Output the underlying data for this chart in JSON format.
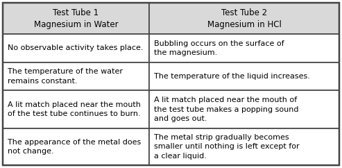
{
  "header": [
    "Test Tube 1\nMagnesium in Water",
    "Test Tube 2\nMagnesium in HCl"
  ],
  "rows": [
    [
      "No observable activity takes place.",
      "Bubbling occurs on the surface of\nthe magnesium."
    ],
    [
      "The temperature of the water\nremains constant.",
      "The temperature of the liquid increases."
    ],
    [
      "A lit match placed near the mouth\nof the test tube continues to burn.",
      "A lit match placed near the mouth of\nthe test tube makes a popping sound\nand goes out."
    ],
    [
      "The appearance of the metal does\nnot change.",
      "The metal strip gradually becomes\nsmaller until nothing is left except for\na clear liquid."
    ]
  ],
  "header_bg": "#d9d9d9",
  "row_bg": "#ffffff",
  "border_color": "#444444",
  "text_color": "#000000",
  "header_fontsize": 8.5,
  "cell_fontsize": 8.0,
  "col_split": 0.435,
  "figure_bg": "#ffffff",
  "outer_border": "#333333"
}
